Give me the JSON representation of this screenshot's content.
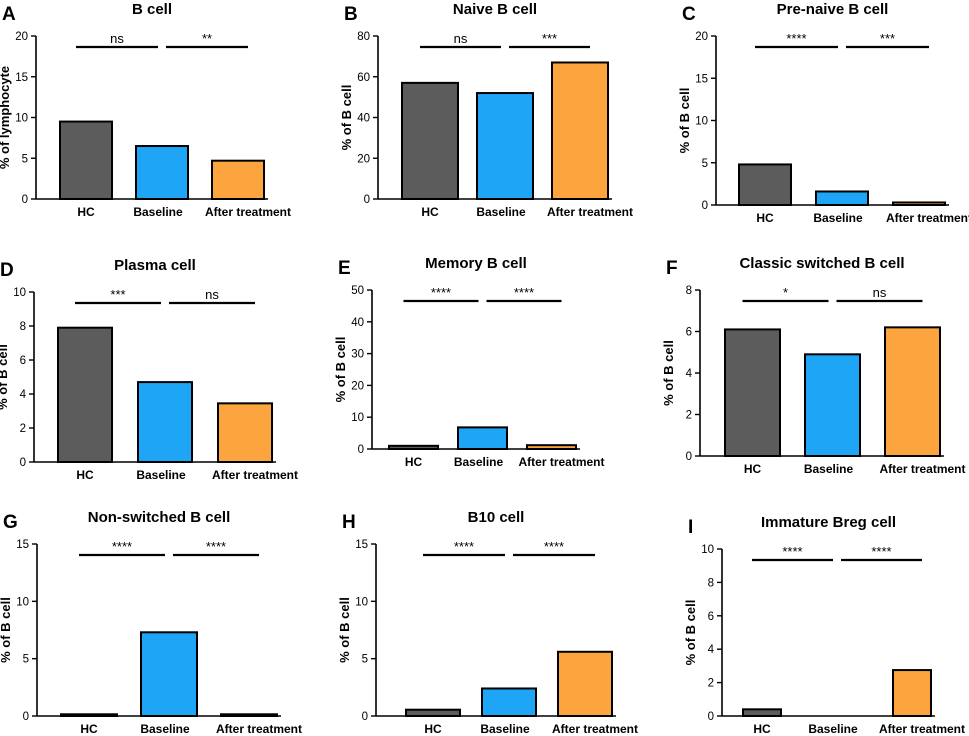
{
  "colors": {
    "HC": "#5c5c5c",
    "Baseline": "#1ea5f5",
    "After treatment": "#fca43e"
  },
  "chart_data": [
    {
      "type": "bar",
      "panel": "A",
      "title": "B cell",
      "ylabel": "% of lymphocyte",
      "categories": [
        "HC",
        "Baseline",
        "After treatment"
      ],
      "values": [
        9.5,
        6.5,
        4.7
      ],
      "ylim": [
        0,
        20
      ],
      "yticks": [
        0,
        5,
        10,
        15,
        20
      ],
      "significance": [
        "ns",
        "**"
      ]
    },
    {
      "type": "bar",
      "panel": "B",
      "title": "Naive B cell",
      "ylabel": "% of B cell",
      "categories": [
        "HC",
        "Baseline",
        "After treatment"
      ],
      "values": [
        57,
        52,
        67
      ],
      "ylim": [
        0,
        80
      ],
      "yticks": [
        0,
        20,
        40,
        60,
        80
      ],
      "significance": [
        "ns",
        "***"
      ]
    },
    {
      "type": "bar",
      "panel": "C",
      "title": "Pre-naive B cell",
      "ylabel": "% of B cell",
      "categories": [
        "HC",
        "Baseline",
        "After treatment"
      ],
      "values": [
        4.8,
        1.6,
        0.3
      ],
      "ylim": [
        0,
        20
      ],
      "yticks": [
        0,
        5,
        10,
        15,
        20
      ],
      "significance": [
        "****",
        "***"
      ]
    },
    {
      "type": "bar",
      "panel": "D",
      "title": "Plasma cell",
      "ylabel": "% of B cell",
      "categories": [
        "HC",
        "Baseline",
        "After treatment"
      ],
      "values": [
        7.9,
        4.7,
        3.45
      ],
      "ylim": [
        0,
        10
      ],
      "yticks": [
        0,
        2,
        4,
        6,
        8,
        10
      ],
      "significance": [
        "***",
        "ns"
      ]
    },
    {
      "type": "bar",
      "panel": "E",
      "title": "Memory B cell",
      "ylabel": "% of B cell",
      "categories": [
        "HC",
        "Baseline",
        "After treatment"
      ],
      "values": [
        1.0,
        6.8,
        1.2
      ],
      "ylim": [
        0,
        50
      ],
      "yticks": [
        0,
        10,
        20,
        30,
        40,
        50
      ],
      "significance": [
        "****",
        "****"
      ]
    },
    {
      "type": "bar",
      "panel": "F",
      "title": "Classic switched B cell",
      "ylabel": "% of B cell",
      "categories": [
        "HC",
        "Baseline",
        "After treatment"
      ],
      "values": [
        6.1,
        4.9,
        6.2
      ],
      "ylim": [
        0,
        8
      ],
      "yticks": [
        0,
        2,
        4,
        6,
        8
      ],
      "significance": [
        "*",
        "ns"
      ]
    },
    {
      "type": "bar",
      "panel": "G",
      "title": "Non-switched B cell",
      "ylabel": "% of B cell",
      "categories": [
        "HC",
        "Baseline",
        "After treatment"
      ],
      "values": [
        0.15,
        7.3,
        0.15
      ],
      "ylim": [
        0,
        15
      ],
      "yticks": [
        0,
        5,
        10,
        15
      ],
      "significance": [
        "****",
        "****"
      ]
    },
    {
      "type": "bar",
      "panel": "H",
      "title": "B10 cell",
      "ylabel": "% of B cell",
      "categories": [
        "HC",
        "Baseline",
        "After treatment"
      ],
      "values": [
        0.55,
        2.4,
        5.6
      ],
      "ylim": [
        0,
        15
      ],
      "yticks": [
        0,
        5,
        10,
        15
      ],
      "significance": [
        "****",
        "****"
      ]
    },
    {
      "type": "bar",
      "panel": "I",
      "title": "Immature Breg cell",
      "ylabel": "% of B cell",
      "categories": [
        "HC",
        "Baseline",
        "After treatment"
      ],
      "values": [
        0.4,
        0,
        2.75
      ],
      "ylim": [
        0,
        10
      ],
      "yticks": [
        0,
        2,
        4,
        6,
        8,
        10
      ],
      "significance": [
        "****",
        "****"
      ]
    }
  ]
}
